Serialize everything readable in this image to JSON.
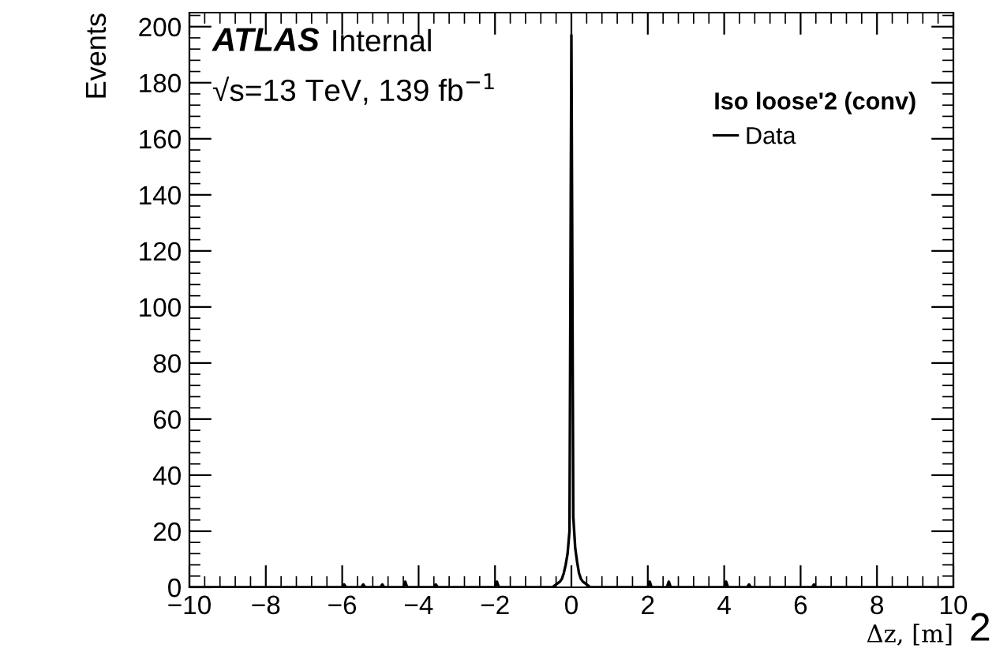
{
  "chart_data": {
    "type": "line",
    "xlabel": "Δz, [m]",
    "ylabel": "Events",
    "legend_title": "Iso loose'2 (conv)",
    "annotations": [
      "ATLAS",
      "Internal",
      "√s=13 TeV, 139 fb$^{−1}$",
      "2"
    ],
    "series": [
      {
        "name": "Data",
        "color": "#000000",
        "x": [
          -10,
          -6,
          -5.95,
          -5.9,
          -5.5,
          -5.45,
          -5.4,
          -5,
          -4.95,
          -4.9,
          -4.4,
          -4.35,
          -4.3,
          -3.6,
          -3.55,
          -3.5,
          -2,
          -1.95,
          -1.9,
          -0.5,
          -0.4,
          -0.3,
          -0.25,
          -0.2,
          -0.15,
          -0.1,
          -0.05,
          0,
          0.05,
          0.1,
          0.15,
          0.2,
          0.25,
          0.3,
          0.4,
          0.5,
          2,
          2.05,
          2.1,
          2.5,
          2.55,
          2.6,
          4,
          4.05,
          4.1,
          4.6,
          4.65,
          4.7,
          6.3,
          6.35,
          6.4,
          10
        ],
        "values": [
          0,
          0,
          1,
          0,
          0,
          1,
          0,
          0,
          1,
          0,
          0,
          2,
          0,
          0,
          1,
          0,
          0,
          2,
          0,
          0,
          1,
          2,
          3,
          5,
          8,
          12,
          20,
          197,
          25,
          14,
          9,
          5,
          3,
          2,
          1,
          0,
          0,
          2,
          0,
          0,
          2,
          0,
          0,
          2,
          0,
          0,
          1,
          0,
          0,
          1,
          0,
          0
        ]
      }
    ],
    "xlim": [
      -10,
      10
    ],
    "xticks": [
      {
        "value": -10,
        "label": "−10"
      },
      {
        "value": -8,
        "label": "−8"
      },
      {
        "value": -6,
        "label": "−6"
      },
      {
        "value": -4,
        "label": "−4"
      },
      {
        "value": -2,
        "label": "−2"
      },
      0,
      2,
      4,
      6,
      8,
      10
    ],
    "ylim": [
      0,
      205
    ],
    "yticks": [
      0,
      20,
      40,
      60,
      80,
      100,
      120,
      140,
      160,
      180,
      200
    ],
    "legend": "top right",
    "grid": false
  }
}
